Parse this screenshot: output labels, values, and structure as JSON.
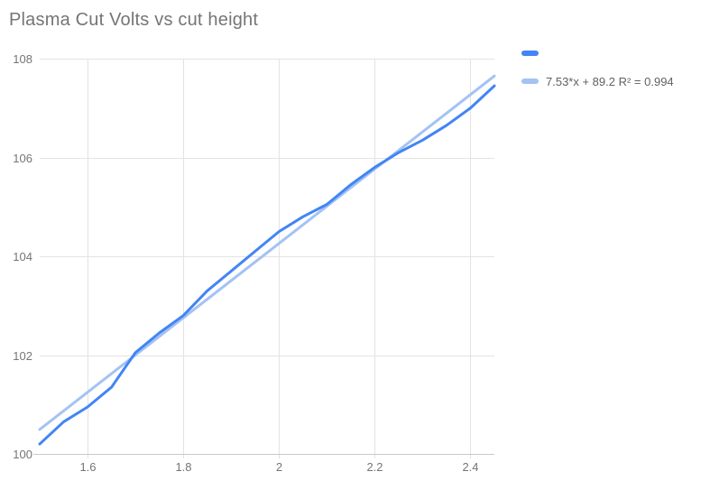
{
  "title": "Plasma Cut Volts vs cut height",
  "colors": {
    "series": "#4285f4",
    "trendline": "#a4c2f4",
    "gridline": "#e3e3e3",
    "axis_line": "#c9c9c9",
    "tick_label": "#757575",
    "title_text": "#757575",
    "legend_text": "#616161",
    "background": "#ffffff"
  },
  "legend": {
    "position": "top-right",
    "items": [
      {
        "label": "",
        "swatch_color": "#4285f4"
      },
      {
        "label": "7.53*x + 89.2 R² = 0.994",
        "swatch_color": "#a4c2f4"
      }
    ]
  },
  "chart_data": {
    "type": "line",
    "title": "Plasma Cut Volts vs cut height",
    "xlabel": "",
    "ylabel": "",
    "xlim": [
      1.5,
      2.45
    ],
    "ylim": [
      100,
      108
    ],
    "grid": true,
    "legend_position": "top-right",
    "x_ticks": [
      {
        "value": 1.6,
        "label": "1.6"
      },
      {
        "value": 1.8,
        "label": "1.8"
      },
      {
        "value": 2.0,
        "label": "2"
      },
      {
        "value": 2.2,
        "label": "2.2"
      },
      {
        "value": 2.4,
        "label": "2.4"
      }
    ],
    "y_ticks": [
      {
        "value": 100,
        "label": "100"
      },
      {
        "value": 102,
        "label": "102"
      },
      {
        "value": 104,
        "label": "104"
      },
      {
        "value": 106,
        "label": "106"
      },
      {
        "value": 108,
        "label": "108"
      }
    ],
    "series": [
      {
        "name": "",
        "color": "#4285f4",
        "x": [
          1.5,
          1.55,
          1.6,
          1.65,
          1.7,
          1.75,
          1.8,
          1.85,
          1.9,
          1.95,
          2.0,
          2.05,
          2.1,
          2.15,
          2.2,
          2.25,
          2.3,
          2.35,
          2.4,
          2.45
        ],
        "y": [
          100.2,
          100.65,
          100.95,
          101.35,
          102.05,
          102.45,
          102.8,
          103.3,
          103.7,
          104.1,
          104.5,
          104.8,
          105.05,
          105.45,
          105.8,
          106.1,
          106.35,
          106.65,
          107.0,
          107.45
        ]
      }
    ],
    "trendline": {
      "label": "7.53*x + 89.2 R² = 0.994",
      "slope": 7.53,
      "intercept": 89.2,
      "r_squared": 0.994,
      "color": "#a4c2f4"
    }
  }
}
